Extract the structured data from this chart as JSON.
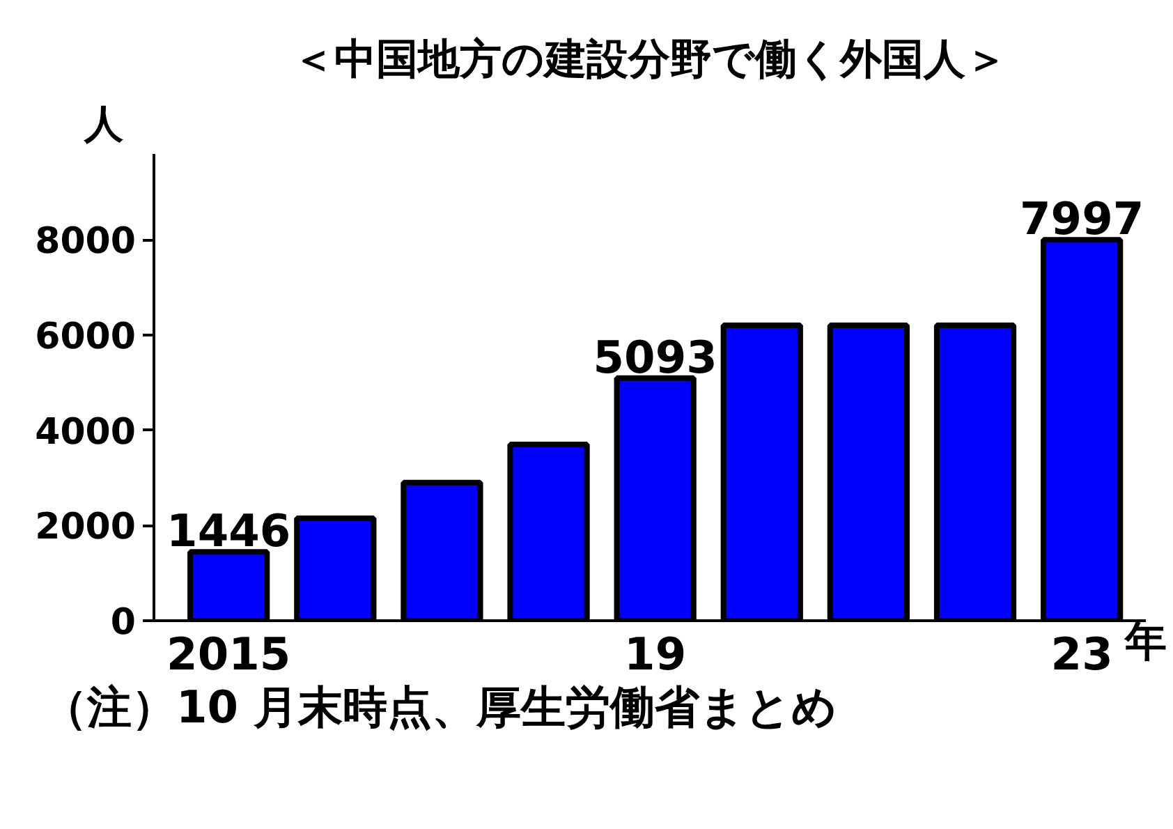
{
  "chart_data": {
    "type": "bar",
    "title": "＜中国地方の建設分野で働く外国人＞",
    "ylabel": "人",
    "xlabel": "年",
    "categories": [
      "2015",
      null,
      null,
      null,
      "19",
      null,
      null,
      null,
      "23"
    ],
    "values": [
      1446,
      2150,
      2900,
      3700,
      5093,
      6200,
      6200,
      6200,
      7997
    ],
    "value_labels": [
      "1446",
      null,
      null,
      null,
      "5093",
      null,
      null,
      null,
      "7997"
    ],
    "color": "#0000ff",
    "ylim": [
      0,
      9800
    ],
    "yticks": [
      0,
      2000,
      4000,
      6000,
      8000
    ],
    "grid": false,
    "annotations": [
      "（注）10 月末時点、厚生労働省まとめ"
    ]
  }
}
